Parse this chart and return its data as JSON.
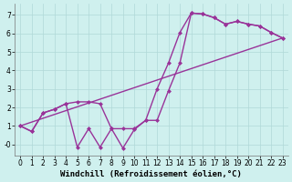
{
  "background_color": "#cff0ee",
  "grid_color": "#b0d8d8",
  "line_color": "#993399",
  "markersize": 2.5,
  "linewidth": 1.0,
  "xlim": [
    -0.5,
    23.5
  ],
  "ylim": [
    -0.6,
    7.6
  ],
  "xticks": [
    0,
    1,
    2,
    3,
    4,
    5,
    6,
    7,
    8,
    9,
    10,
    11,
    12,
    13,
    14,
    15,
    16,
    17,
    18,
    19,
    20,
    21,
    22,
    23
  ],
  "yticks": [
    0,
    1,
    2,
    3,
    4,
    5,
    6,
    7
  ],
  "ytick_labels": [
    "-0",
    "1",
    "2",
    "3",
    "4",
    "5",
    "6",
    "7"
  ],
  "xlabel": "Windchill (Refroidissement éolien,°C)",
  "xlabel_fontsize": 6.5,
  "tick_fontsize": 5.5,
  "line1_x": [
    0,
    1,
    2,
    3,
    4,
    5,
    6,
    7,
    8,
    9,
    10,
    11,
    12,
    13,
    14,
    15,
    16,
    17,
    18,
    19,
    20,
    21,
    22,
    23
  ],
  "line1_y": [
    1.0,
    0.7,
    1.7,
    1.9,
    2.2,
    2.3,
    2.3,
    2.2,
    0.85,
    0.85,
    0.85,
    1.3,
    3.0,
    4.4,
    6.05,
    7.1,
    7.05,
    6.85,
    6.5,
    6.65,
    6.5,
    6.4,
    6.05,
    5.75
  ],
  "line2_x": [
    0,
    23
  ],
  "line2_y": [
    1.0,
    5.75
  ],
  "line3_x": [
    0,
    1,
    2,
    3,
    4,
    5,
    6,
    7,
    8,
    9,
    10,
    11,
    12,
    13,
    14,
    15,
    16,
    17,
    18,
    19,
    20,
    21,
    22,
    23
  ],
  "line3_y": [
    1.0,
    0.7,
    1.7,
    1.9,
    2.2,
    -0.15,
    0.85,
    -0.15,
    0.85,
    -0.2,
    0.8,
    1.3,
    1.3,
    2.9,
    4.4,
    7.1,
    7.05,
    6.85,
    6.5,
    6.65,
    6.5,
    6.4,
    6.05,
    5.75
  ]
}
